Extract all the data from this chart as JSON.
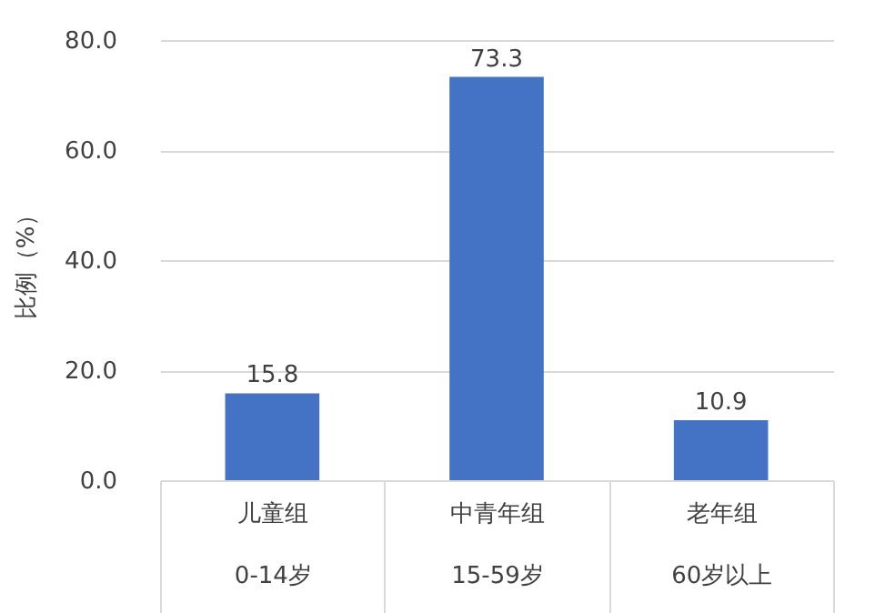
{
  "chart_data": {
    "type": "bar",
    "ylabel": "比例（%）",
    "categories": [
      "儿童组\n0-14岁",
      "中青年组\n15-59岁",
      "老年组\n60岁以上"
    ],
    "values": [
      15.8,
      73.3,
      10.9
    ],
    "color": "#4472c4",
    "ylim": [
      0,
      80
    ],
    "yticks": [
      {
        "value": 0,
        "label": "0.0"
      },
      {
        "value": 20,
        "label": "20.0"
      },
      {
        "value": 40,
        "label": "40.0"
      },
      {
        "value": 60,
        "label": "60.0"
      },
      {
        "value": 80,
        "label": "80.0"
      }
    ],
    "grid": "y",
    "data_labels": true
  }
}
